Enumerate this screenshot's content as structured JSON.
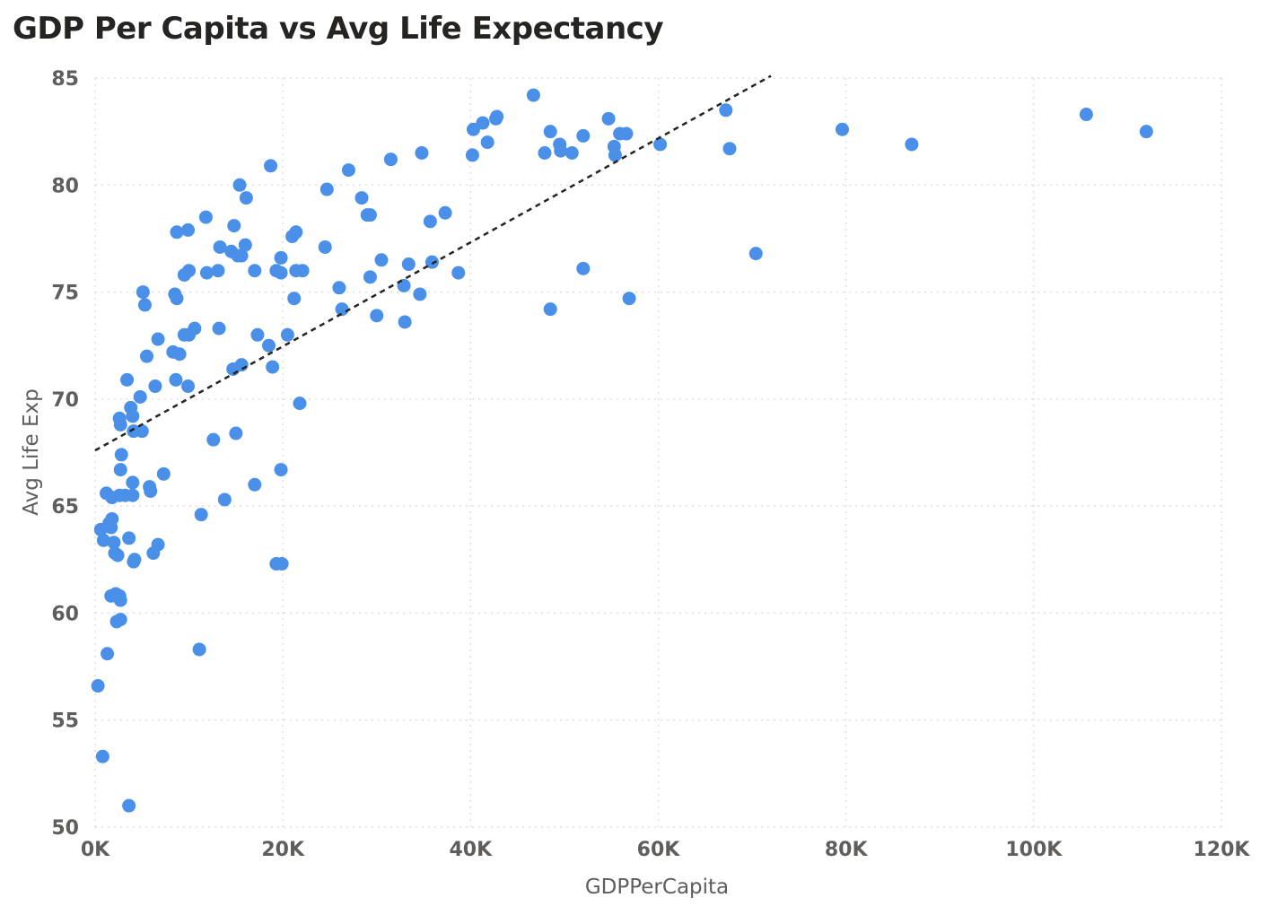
{
  "title": "GDP Per Capita vs Avg Life Expectancy",
  "colors": {
    "point": "#4a90e8",
    "trend": "#252423",
    "text": "#605e5c",
    "title": "#252423",
    "grid": "#e1dfdd"
  },
  "chart_data": {
    "type": "scatter",
    "title": "GDP Per Capita vs Avg Life Expectancy",
    "xlabel": "GDPPerCapita",
    "ylabel": "Avg Life Exp",
    "xlim": [
      0,
      120000
    ],
    "ylim": [
      50,
      85
    ],
    "x_ticks": [
      0,
      20000,
      40000,
      60000,
      80000,
      100000,
      120000
    ],
    "x_tick_labels": [
      "0K",
      "20K",
      "40K",
      "60K",
      "80K",
      "100K",
      "120K"
    ],
    "y_ticks": [
      85,
      80,
      75,
      70,
      65,
      60,
      55,
      50
    ],
    "y_tick_labels": [
      "85",
      "80",
      "75",
      "70",
      "65",
      "60",
      "55",
      "50"
    ],
    "grid": true,
    "legend": "none",
    "trendline": {
      "x": [
        0,
        72000
      ],
      "y": [
        67.6,
        85.1
      ]
    },
    "points": [
      [
        46700,
        84.2
      ],
      [
        42800,
        83.2
      ],
      [
        42700,
        83.1
      ],
      [
        41300,
        82.9
      ],
      [
        40300,
        82.6
      ],
      [
        41800,
        82.0
      ],
      [
        40200,
        81.4
      ],
      [
        48500,
        82.5
      ],
      [
        49500,
        81.9
      ],
      [
        52000,
        82.3
      ],
      [
        54700,
        83.1
      ],
      [
        55900,
        82.4
      ],
      [
        56600,
        82.4
      ],
      [
        55300,
        81.8
      ],
      [
        55400,
        81.4
      ],
      [
        47900,
        81.5
      ],
      [
        49600,
        81.6
      ],
      [
        50800,
        81.5
      ],
      [
        60200,
        81.9
      ],
      [
        67200,
        83.5
      ],
      [
        67600,
        81.7
      ],
      [
        79600,
        82.6
      ],
      [
        87000,
        81.9
      ],
      [
        105600,
        83.3
      ],
      [
        112000,
        82.5
      ],
      [
        70400,
        76.8
      ],
      [
        52000,
        76.1
      ],
      [
        56900,
        74.7
      ],
      [
        48500,
        74.2
      ],
      [
        34800,
        81.5
      ],
      [
        31500,
        81.2
      ],
      [
        27000,
        80.7
      ],
      [
        18700,
        80.9
      ],
      [
        15400,
        80.0
      ],
      [
        16100,
        79.4
      ],
      [
        24700,
        79.8
      ],
      [
        28400,
        79.4
      ],
      [
        29000,
        78.6
      ],
      [
        29300,
        78.6
      ],
      [
        11800,
        78.5
      ],
      [
        14800,
        78.1
      ],
      [
        9900,
        77.9
      ],
      [
        8700,
        77.8
      ],
      [
        37300,
        78.7
      ],
      [
        35700,
        78.3
      ],
      [
        21000,
        77.6
      ],
      [
        21400,
        77.8
      ],
      [
        24500,
        77.1
      ],
      [
        13300,
        77.1
      ],
      [
        16000,
        77.2
      ],
      [
        14500,
        76.9
      ],
      [
        15200,
        76.7
      ],
      [
        15600,
        76.7
      ],
      [
        19800,
        76.6
      ],
      [
        30500,
        76.5
      ],
      [
        33400,
        76.3
      ],
      [
        35900,
        76.4
      ],
      [
        38700,
        75.9
      ],
      [
        10000,
        76.0
      ],
      [
        9500,
        75.8
      ],
      [
        11900,
        75.9
      ],
      [
        13100,
        76.0
      ],
      [
        17000,
        76.0
      ],
      [
        19300,
        76.0
      ],
      [
        19800,
        75.9
      ],
      [
        21400,
        76.0
      ],
      [
        22100,
        76.0
      ],
      [
        29300,
        75.7
      ],
      [
        26000,
        75.2
      ],
      [
        32900,
        75.3
      ],
      [
        34600,
        74.9
      ],
      [
        5100,
        75.0
      ],
      [
        5300,
        74.4
      ],
      [
        8500,
        74.9
      ],
      [
        8700,
        74.7
      ],
      [
        21200,
        74.7
      ],
      [
        26300,
        74.2
      ],
      [
        30000,
        73.9
      ],
      [
        33000,
        73.6
      ],
      [
        13200,
        73.3
      ],
      [
        10600,
        73.3
      ],
      [
        9500,
        73.0
      ],
      [
        10000,
        73.0
      ],
      [
        17300,
        73.0
      ],
      [
        20500,
        73.0
      ],
      [
        6700,
        72.8
      ],
      [
        18500,
        72.5
      ],
      [
        8300,
        72.2
      ],
      [
        9000,
        72.1
      ],
      [
        5500,
        72.0
      ],
      [
        15600,
        71.6
      ],
      [
        14700,
        71.4
      ],
      [
        18900,
        71.5
      ],
      [
        3400,
        70.9
      ],
      [
        8600,
        70.9
      ],
      [
        9900,
        70.6
      ],
      [
        6400,
        70.6
      ],
      [
        4800,
        70.1
      ],
      [
        21800,
        69.8
      ],
      [
        3800,
        69.6
      ],
      [
        2600,
        69.1
      ],
      [
        2700,
        68.8
      ],
      [
        4000,
        69.2
      ],
      [
        4100,
        68.5
      ],
      [
        5000,
        68.5
      ],
      [
        12600,
        68.1
      ],
      [
        15000,
        68.4
      ],
      [
        2800,
        67.4
      ],
      [
        2700,
        66.7
      ],
      [
        7300,
        66.5
      ],
      [
        19800,
        66.7
      ],
      [
        4000,
        66.1
      ],
      [
        5800,
        65.9
      ],
      [
        5900,
        65.7
      ],
      [
        17000,
        66.0
      ],
      [
        1200,
        65.6
      ],
      [
        1800,
        65.4
      ],
      [
        2600,
        65.5
      ],
      [
        3200,
        65.5
      ],
      [
        4000,
        65.5
      ],
      [
        13800,
        65.3
      ],
      [
        11300,
        64.6
      ],
      [
        1500,
        64.2
      ],
      [
        1800,
        64.4
      ],
      [
        600,
        63.9
      ],
      [
        1700,
        64.0
      ],
      [
        900,
        63.4
      ],
      [
        2000,
        63.3
      ],
      [
        3600,
        63.5
      ],
      [
        6700,
        63.2
      ],
      [
        2100,
        62.8
      ],
      [
        2400,
        62.7
      ],
      [
        6200,
        62.8
      ],
      [
        4200,
        62.5
      ],
      [
        4100,
        62.4
      ],
      [
        19300,
        62.3
      ],
      [
        19900,
        62.3
      ],
      [
        1700,
        60.8
      ],
      [
        2200,
        60.9
      ],
      [
        2600,
        60.8
      ],
      [
        2700,
        60.6
      ],
      [
        2300,
        59.6
      ],
      [
        2700,
        59.7
      ],
      [
        11100,
        58.3
      ],
      [
        1300,
        58.1
      ],
      [
        300,
        56.6
      ],
      [
        800,
        53.3
      ],
      [
        3600,
        51.0
      ]
    ]
  }
}
